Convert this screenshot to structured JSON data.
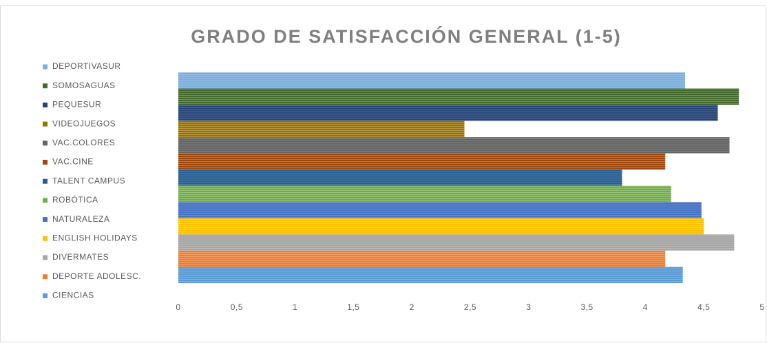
{
  "chart_data": {
    "type": "bar",
    "orientation": "horizontal",
    "title": "GRADO DE SATISFACCIÓN GENERAL (1-5)",
    "series": [
      {
        "name": "DEPORTIVASUR",
        "color": "#7cafdd",
        "values": [
          4.34
        ]
      },
      {
        "name": "SOMOSAGUAS",
        "color": "#43682b",
        "values": [
          4.8
        ]
      },
      {
        "name": "PEQUESUR",
        "color": "#264478",
        "values": [
          4.62
        ]
      },
      {
        "name": "VIDEOJUEGOS",
        "color": "#997300",
        "values": [
          2.45
        ]
      },
      {
        "name": "VAC.COLORES",
        "color": "#636363",
        "values": [
          4.72
        ]
      },
      {
        "name": "VAC.CINE",
        "color": "#9e480e",
        "values": [
          4.17
        ]
      },
      {
        "name": "TALENT CAMPUS",
        "color": "#255e91",
        "values": [
          3.8
        ]
      },
      {
        "name": "ROBÓTICA",
        "color": "#70ad47",
        "values": [
          4.22
        ]
      },
      {
        "name": "NATURALEZA",
        "color": "#4472c4",
        "values": [
          4.48
        ]
      },
      {
        "name": "ENGLISH HOLIDAYS",
        "color": "#ffc000",
        "values": [
          4.5
        ]
      },
      {
        "name": "DIVERMATES",
        "color": "#a5a5a5",
        "values": [
          4.76
        ]
      },
      {
        "name": "DEPORTE ADOLESC.",
        "color": "#ed7d31",
        "values": [
          4.17
        ]
      },
      {
        "name": "CIENCIAS",
        "color": "#5b9bd5",
        "values": [
          4.32
        ]
      }
    ],
    "xlim": [
      0,
      5
    ],
    "xticks": [
      0,
      {
        "value": 0.5,
        "label": "0,5"
      },
      1,
      {
        "value": 1.5,
        "label": "1,5"
      },
      2,
      {
        "value": 2.5,
        "label": "2,5"
      },
      3,
      {
        "value": 3.5,
        "label": "3,5"
      },
      4,
      {
        "value": 4.5,
        "label": "4,5"
      },
      5
    ],
    "legend": "left"
  }
}
